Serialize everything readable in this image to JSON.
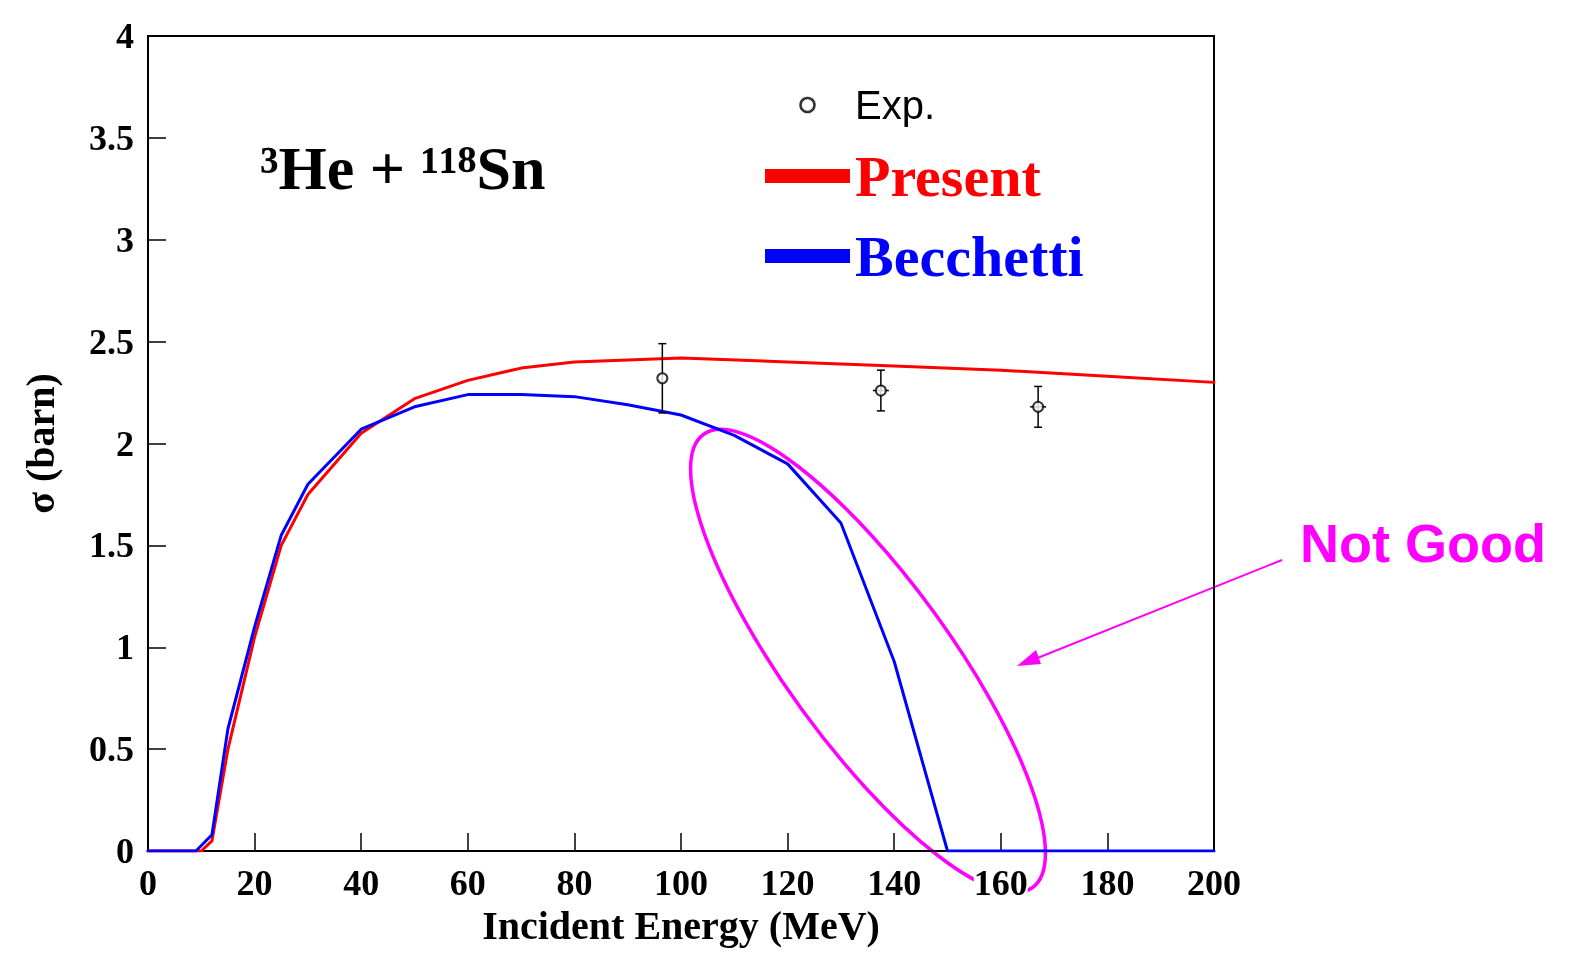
{
  "chart_data": {
    "type": "line",
    "title": "³He + ¹¹⁸Sn",
    "xlabel": "Incident Energy (MeV)",
    "ylabel": "σ (barn)",
    "annotations": [
      "Not Good"
    ],
    "xlim": [
      0,
      200
    ],
    "xticks": [
      0,
      20,
      40,
      60,
      80,
      100,
      120,
      140,
      160,
      180,
      200
    ],
    "ylim": [
      0,
      4
    ],
    "yticks": [
      0,
      0.5,
      1,
      1.5,
      2,
      2.5,
      3,
      3.5,
      4
    ],
    "grid": false,
    "legend": "top right",
    "marker": "none",
    "line_style": "solid",
    "series": [
      {
        "name": "Exp.",
        "type": "scatter",
        "marker": "circle",
        "color": "#000000",
        "x": [
          96.5,
          137.5,
          167
        ],
        "values": [
          2.32,
          2.26,
          2.18
        ],
        "errors": [
          0.17,
          0.1,
          0.1
        ],
        "xerrors": [
          null,
          1.5,
          1.5
        ]
      },
      {
        "name": "Present",
        "color": "#ff0000",
        "x": [
          0,
          10,
          12,
          15,
          20,
          25,
          30,
          40,
          50,
          60,
          70,
          80,
          100,
          120,
          140,
          160,
          180,
          200
        ],
        "values": [
          0,
          0,
          0.05,
          0.5,
          1.05,
          1.5,
          1.75,
          2.05,
          2.22,
          2.31,
          2.37,
          2.4,
          2.42,
          2.4,
          2.38,
          2.36,
          2.33,
          2.3
        ]
      },
      {
        "name": "Becchetti",
        "color": "#0000ff",
        "x": [
          0,
          9,
          12,
          15,
          20,
          25,
          30,
          40,
          50,
          60,
          70,
          80,
          90,
          100,
          110,
          120,
          130,
          140,
          150,
          200
        ],
        "values": [
          0,
          0,
          0.08,
          0.6,
          1.1,
          1.55,
          1.8,
          2.07,
          2.18,
          2.24,
          2.24,
          2.23,
          2.19,
          2.14,
          2.04,
          1.9,
          1.61,
          0.93,
          0,
          0
        ]
      }
    ]
  }
}
